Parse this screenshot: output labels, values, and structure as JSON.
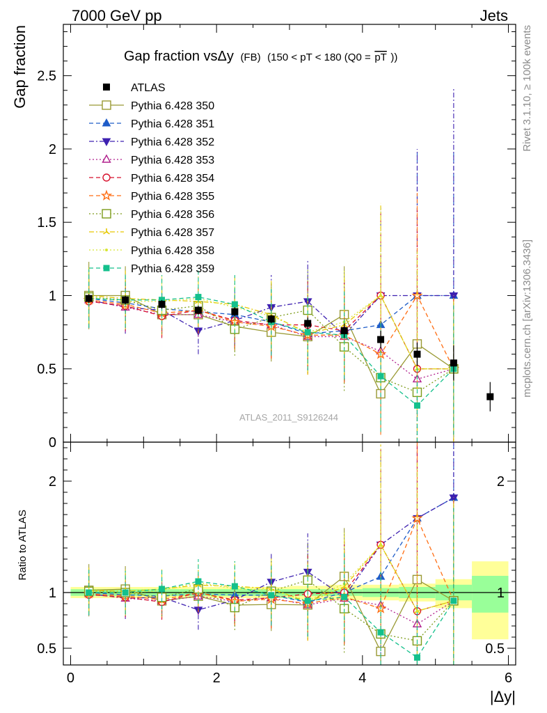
{
  "header": {
    "energy_label": "7000 GeV pp",
    "process_label": "Jets",
    "rivet_label": "Rivet 3.1.10, ≥ 100k events",
    "mcplots_label": "mcplots.cern.ch [arXiv:1306.3436]"
  },
  "chart_data": [
    {
      "type": "scatter",
      "panel": "main",
      "title": "Gap fraction vsΔy (FB) (150 < pT < 180 (Q0 =pT))",
      "title_main": "Gap fraction vsΔy",
      "title_small": "(FB)",
      "title_cut": "(150 < pT < 180 (Q0 =",
      "title_over": "pT",
      "title_close": "))",
      "ylabel": "Gap fraction",
      "ylim": [
        0,
        2.85
      ],
      "xlim": [
        -0.1,
        6.1
      ],
      "yticks": [
        0,
        0.5,
        1,
        1.5,
        2,
        2.5
      ],
      "ytick_labels": [
        "0",
        "0.5",
        "1",
        "1.5",
        "2",
        "2.5"
      ],
      "watermark": "ATLAS_2011_S9126244",
      "x": [
        0.25,
        0.75,
        1.25,
        1.75,
        2.25,
        2.75,
        3.25,
        3.75,
        4.25,
        4.75,
        5.25,
        5.75
      ],
      "data": {
        "name": "ATLAS",
        "values": [
          0.98,
          0.97,
          0.94,
          0.9,
          0.89,
          0.84,
          0.81,
          0.76,
          0.7,
          0.6,
          0.54,
          0.31
        ],
        "errors": [
          0.03,
          0.03,
          0.03,
          0.03,
          0.03,
          0.03,
          0.04,
          0.05,
          0.06,
          0.08,
          0.12,
          0.1
        ]
      },
      "series": [
        {
          "name": "Pythia 6.428 350",
          "color": "#999933",
          "marker": "square-open",
          "dash": "solid",
          "values": [
            1.0,
            1.0,
            0.87,
            0.87,
            0.79,
            0.75,
            0.72,
            0.87,
            0.33,
            0.67,
            0.5
          ],
          "errors": [
            0.23,
            0.2,
            0.15,
            0.14,
            0.17,
            0.2,
            0.24,
            0.33,
            0.27,
            0.5,
            0.5
          ]
        },
        {
          "name": "Pythia 6.428 351",
          "color": "#1e5cc8",
          "marker": "triangle-up",
          "dash": "dashed",
          "values": [
            0.98,
            0.95,
            0.91,
            0.89,
            0.87,
            0.82,
            0.74,
            0.76,
            0.8,
            1.0,
            1.0
          ],
          "errors": [
            0.2,
            0.19,
            0.16,
            0.17,
            0.19,
            0.22,
            0.27,
            0.35,
            0.5,
            1.0,
            1.0
          ]
        },
        {
          "name": "Pythia 6.428 352",
          "color": "#3d20b0",
          "marker": "triangle-down",
          "dash": "dashdot",
          "values": [
            0.97,
            0.92,
            0.9,
            0.76,
            0.83,
            0.92,
            0.96,
            0.73,
            1.0,
            1.0,
            1.0
          ],
          "errors": [
            0.18,
            0.18,
            0.16,
            0.16,
            0.18,
            0.22,
            0.28,
            0.32,
            0.6,
            1.0,
            1.42
          ]
        },
        {
          "name": "Pythia 6.428 353",
          "color": "#b01e8c",
          "marker": "triangle-up-open",
          "dash": "dotted",
          "values": [
            0.97,
            0.92,
            0.87,
            0.87,
            0.82,
            0.8,
            0.72,
            0.72,
            0.62,
            0.43,
            0.5
          ],
          "errors": [
            0.17,
            0.17,
            0.15,
            0.15,
            0.18,
            0.22,
            0.25,
            0.3,
            0.4,
            0.5,
            0.5
          ]
        },
        {
          "name": "Pythia 6.428 354",
          "color": "#d8102c",
          "marker": "circle-open",
          "dash": "dashed",
          "values": [
            0.96,
            0.93,
            0.86,
            0.9,
            0.83,
            0.8,
            0.8,
            0.76,
            1.0,
            0.5,
            0.5
          ],
          "errors": [
            0.17,
            0.17,
            0.15,
            0.16,
            0.19,
            0.23,
            0.3,
            0.35,
            0.6,
            1.1,
            0.5
          ]
        },
        {
          "name": "Pythia 6.428 355",
          "color": "#ff6e14",
          "marker": "star-open",
          "dash": "dashed",
          "values": [
            0.97,
            0.94,
            0.88,
            0.9,
            0.82,
            0.79,
            0.73,
            0.73,
            0.6,
            1.0,
            0.5
          ],
          "errors": [
            0.17,
            0.17,
            0.15,
            0.16,
            0.19,
            0.22,
            0.27,
            0.33,
            0.55,
            0.7,
            0.5
          ]
        },
        {
          "name": "Pythia 6.428 356",
          "color": "#7c9b19",
          "marker": "square-open",
          "dash": "dotted",
          "values": [
            0.99,
            0.97,
            0.9,
            0.93,
            0.77,
            0.85,
            0.9,
            0.65,
            0.44,
            0.34,
            0.5
          ],
          "errors": [
            0.18,
            0.18,
            0.16,
            0.17,
            0.18,
            0.23,
            0.28,
            0.3,
            0.3,
            0.35,
            0.45
          ]
        },
        {
          "name": "Pythia 6.428 357",
          "color": "#e6c800",
          "marker": "tri-y",
          "dash": "dashdot",
          "values": [
            1.0,
            0.98,
            0.97,
            0.96,
            0.94,
            0.87,
            0.74,
            0.8,
            1.0,
            0.5,
            0.5
          ],
          "errors": [
            0.2,
            0.19,
            0.17,
            0.17,
            0.2,
            0.23,
            0.28,
            0.35,
            0.63,
            0.8,
            0.5
          ]
        },
        {
          "name": "Pythia 6.428 358",
          "color": "#d7e632",
          "marker": "dot",
          "dash": "dotted",
          "values": [
            0.99,
            0.96,
            0.96,
            0.98,
            0.92,
            0.86,
            0.75,
            0.82,
            1.0,
            0.5,
            0.5
          ],
          "errors": [
            0.2,
            0.19,
            0.17,
            0.17,
            0.2,
            0.23,
            0.27,
            0.35,
            0.6,
            0.8,
            0.5
          ]
        },
        {
          "name": "Pythia 6.428 359",
          "color": "#14c08c",
          "marker": "square",
          "dash": "dashed",
          "values": [
            0.98,
            0.97,
            0.97,
            0.99,
            0.94,
            0.82,
            0.75,
            0.73,
            0.45,
            0.25,
            0.5
          ],
          "errors": [
            0.2,
            0.19,
            0.17,
            0.18,
            0.2,
            0.23,
            0.26,
            0.3,
            0.38,
            0.3,
            0.45
          ]
        }
      ]
    },
    {
      "type": "scatter",
      "panel": "ratio",
      "ylabel": "Ratio to ATLAS",
      "xlabel": "|Δy|",
      "ylim": [
        0.35,
        2.35
      ],
      "xlim": [
        -0.1,
        6.1
      ],
      "yticks": [
        0.5,
        1,
        2
      ],
      "ytick_labels": [
        "0.5",
        "1",
        "2"
      ],
      "xticks": [
        0,
        2,
        4,
        6
      ],
      "xtick_labels": [
        "0",
        "2",
        "4",
        "6"
      ],
      "reference": 1,
      "bands": [
        {
          "x_low": 0.0,
          "x_high": 0.5,
          "inner": [
            0.97,
            1.03
          ],
          "outer": [
            0.95,
            1.05
          ]
        },
        {
          "x_low": 0.5,
          "x_high": 1.0,
          "inner": [
            0.97,
            1.03
          ],
          "outer": [
            0.95,
            1.05
          ]
        },
        {
          "x_low": 1.0,
          "x_high": 1.5,
          "inner": [
            0.97,
            1.03
          ],
          "outer": [
            0.95,
            1.05
          ]
        },
        {
          "x_low": 1.5,
          "x_high": 2.0,
          "inner": [
            0.97,
            1.03
          ],
          "outer": [
            0.95,
            1.05
          ]
        },
        {
          "x_low": 2.0,
          "x_high": 2.5,
          "inner": [
            0.97,
            1.03
          ],
          "outer": [
            0.95,
            1.05
          ]
        },
        {
          "x_low": 2.5,
          "x_high": 3.0,
          "inner": [
            0.97,
            1.03
          ],
          "outer": [
            0.95,
            1.05
          ]
        },
        {
          "x_low": 3.0,
          "x_high": 3.5,
          "inner": [
            0.97,
            1.03
          ],
          "outer": [
            0.94,
            1.06
          ]
        },
        {
          "x_low": 3.5,
          "x_high": 4.0,
          "inner": [
            0.97,
            1.03
          ],
          "outer": [
            0.93,
            1.07
          ]
        },
        {
          "x_low": 4.0,
          "x_high": 4.5,
          "inner": [
            0.96,
            1.04
          ],
          "outer": [
            0.93,
            1.07
          ]
        },
        {
          "x_low": 4.5,
          "x_high": 5.0,
          "inner": [
            0.95,
            1.05
          ],
          "outer": [
            0.92,
            1.08
          ]
        },
        {
          "x_low": 5.0,
          "x_high": 5.5,
          "inner": [
            0.93,
            1.07
          ],
          "outer": [
            0.86,
            1.12
          ]
        },
        {
          "x_low": 5.5,
          "x_high": 6.0,
          "inner": [
            0.82,
            1.15
          ],
          "outer": [
            0.58,
            1.28
          ]
        }
      ]
    }
  ]
}
